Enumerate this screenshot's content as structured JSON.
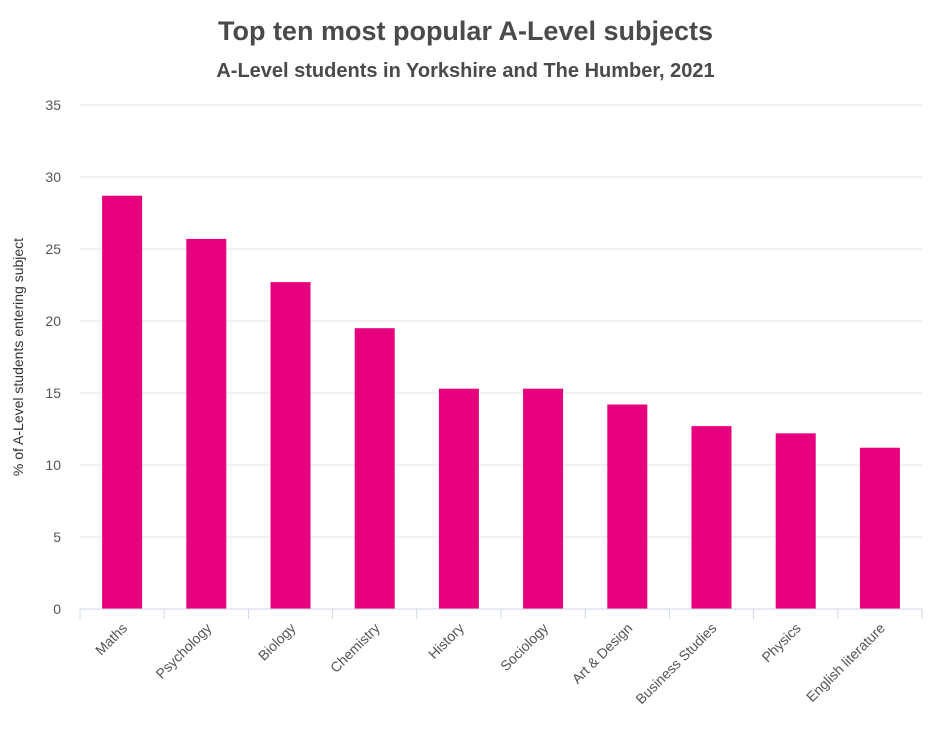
{
  "chart_data": {
    "type": "bar",
    "title": "Top ten most popular A-Level subjects",
    "subtitle": "A-Level students in Yorkshire and The Humber, 2021",
    "xlabel": "",
    "ylabel": "% of A-Level students entering subject",
    "categories": [
      "Maths",
      "Psychology",
      "Biology",
      "Chemistry",
      "History",
      "Sociology",
      "Art & Design",
      "Business Studies",
      "Physics",
      "English literature"
    ],
    "values": [
      28.7,
      25.7,
      22.7,
      19.5,
      15.3,
      15.3,
      14.2,
      12.7,
      12.2,
      11.2
    ],
    "ylim": [
      0,
      35
    ],
    "yticks": [
      0,
      5,
      10,
      15,
      20,
      25,
      30,
      35
    ],
    "grid": true,
    "legend": "none",
    "colors": {
      "bar": "#e6007e",
      "grid": "#e6e6e6",
      "axis": "#ccd6eb"
    }
  }
}
